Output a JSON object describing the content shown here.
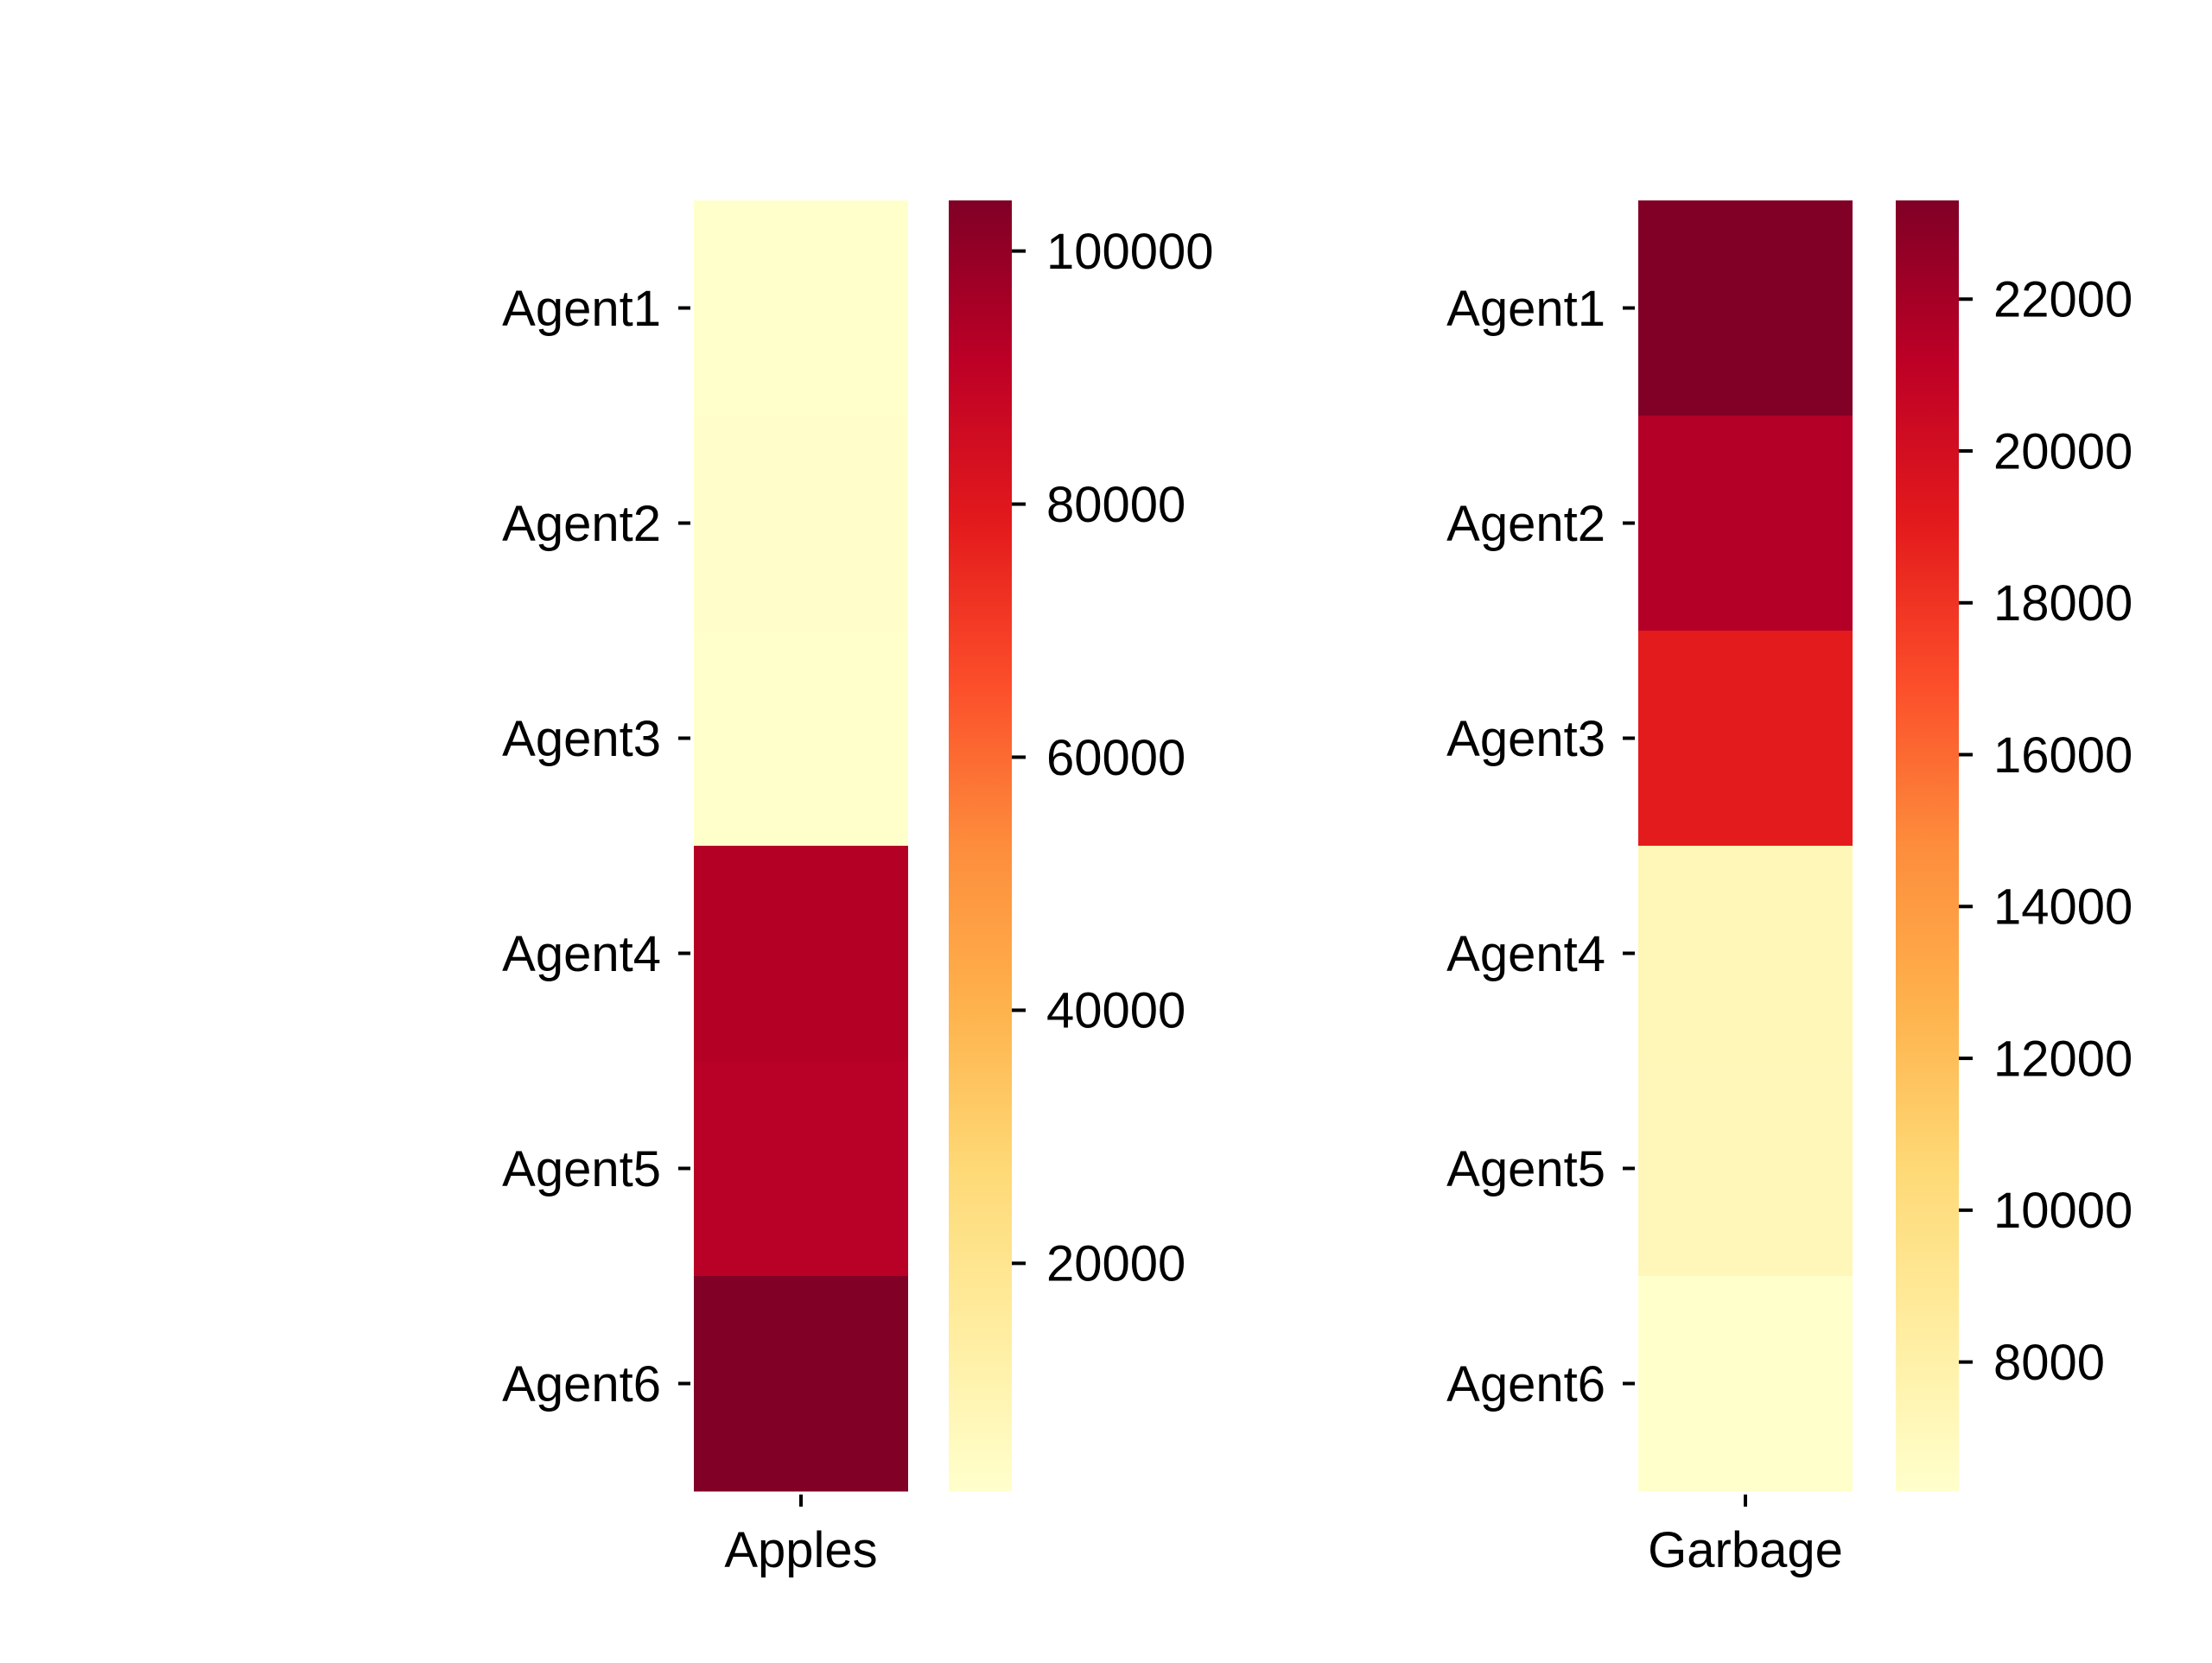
{
  "chart_data": [
    {
      "type": "heatmap",
      "title": "",
      "xlabel": "",
      "ylabel": "",
      "columns": [
        "Apples"
      ],
      "rows": [
        "Agent1",
        "Agent2",
        "Agent3",
        "Agent4",
        "Agent5",
        "Agent6"
      ],
      "values": [
        2000,
        2500,
        2300,
        93000,
        92000,
        104000
      ],
      "colorbar": {
        "range": [
          2000,
          104000
        ],
        "ticks": [
          20000,
          40000,
          60000,
          80000,
          100000
        ],
        "tick_labels": [
          "20000",
          "40000",
          "60000",
          "80000",
          "100000"
        ]
      },
      "colormap": "YlOrRd",
      "colors": [
        "#FFFFCC",
        "#FFEDA0",
        "#FED976",
        "#FEB24C",
        "#FD8D3C",
        "#FC4E2A",
        "#E31A1C",
        "#BD0026",
        "#800026"
      ]
    },
    {
      "type": "heatmap",
      "title": "",
      "xlabel": "",
      "ylabel": "",
      "columns": [
        "Garbage"
      ],
      "rows": [
        "Agent1",
        "Agent2",
        "Agent3",
        "Agent4",
        "Agent5",
        "Agent6"
      ],
      "values": [
        23300,
        21500,
        19000,
        7300,
        7200,
        6300
      ],
      "colorbar": {
        "range": [
          6300,
          23300
        ],
        "ticks": [
          8000,
          10000,
          12000,
          14000,
          16000,
          18000,
          20000,
          22000
        ],
        "tick_labels": [
          "8000",
          "10000",
          "12000",
          "14000",
          "16000",
          "18000",
          "20000",
          "22000"
        ]
      },
      "colormap": "YlOrRd",
      "colors": [
        "#FFFFCC",
        "#FFEDA0",
        "#FED976",
        "#FEB24C",
        "#FD8D3C",
        "#FC4E2A",
        "#E31A1C",
        "#BD0026",
        "#800026"
      ]
    }
  ]
}
